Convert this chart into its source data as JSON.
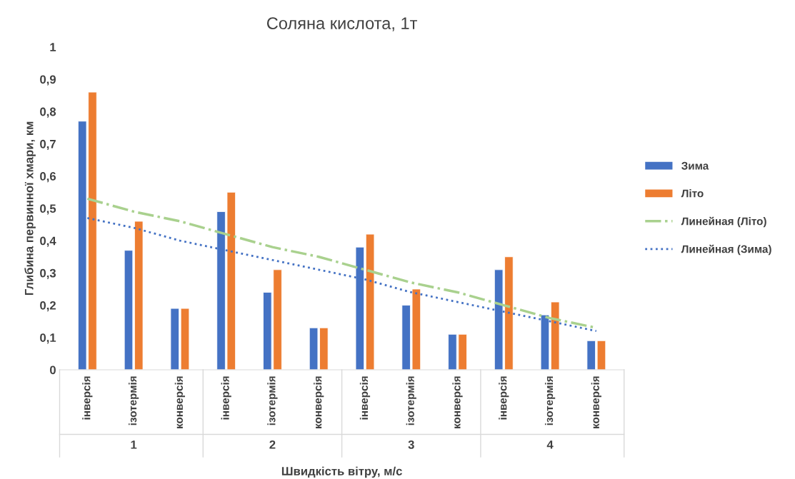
{
  "chart_data": {
    "type": "bar",
    "title": "Соляна кислота, 1т",
    "xlabel": "Швидкість вітру, м/с",
    "ylabel": "Глибина первинної хмари, км",
    "categories": [
      "інверсія",
      "ізотермія",
      "конверсія",
      "інверсія",
      "ізотермія",
      "конверсія",
      "інверсія",
      "ізотермія",
      "конверсія",
      "інверсія",
      "ізотермія",
      "конверсія"
    ],
    "annotations": [
      "1",
      "2",
      "3",
      "4"
    ],
    "series": [
      {
        "name": "Зима",
        "color": "#4472c4",
        "values": [
          0.77,
          0.37,
          0.19,
          0.49,
          0.24,
          0.13,
          0.38,
          0.2,
          0.11,
          0.31,
          0.17,
          0.09
        ]
      },
      {
        "name": "Літо",
        "color": "#ed7d31",
        "values": [
          0.86,
          0.46,
          0.19,
          0.55,
          0.31,
          0.13,
          0.42,
          0.25,
          0.11,
          0.35,
          0.21,
          0.09
        ]
      },
      {
        "name": "Линейная (Літо)",
        "type": "line",
        "line_style": "dashdot",
        "color": "#a9d18e",
        "values": [
          0.53,
          0.49,
          0.46,
          0.42,
          0.38,
          0.35,
          0.31,
          0.27,
          0.24,
          0.2,
          0.16,
          0.13
        ]
      },
      {
        "name": "Линейная (Зима)",
        "type": "line",
        "line_style": "dotted",
        "color": "#4472c4",
        "values": [
          0.47,
          0.44,
          0.4,
          0.37,
          0.34,
          0.31,
          0.28,
          0.24,
          0.21,
          0.18,
          0.15,
          0.12
        ]
      }
    ],
    "ylim": [
      0,
      1
    ],
    "yticks": [
      {
        "value": 0,
        "label": "0"
      },
      {
        "value": 0.1,
        "label": "0,1"
      },
      {
        "value": 0.2,
        "label": "0,2"
      },
      {
        "value": 0.3,
        "label": "0,3"
      },
      {
        "value": 0.4,
        "label": "0,4"
      },
      {
        "value": 0.5,
        "label": "0,5"
      },
      {
        "value": 0.6,
        "label": "0,6"
      },
      {
        "value": 0.7,
        "label": "0,7"
      },
      {
        "value": 0.8,
        "label": "0,8"
      },
      {
        "value": 0.9,
        "label": "0,9"
      },
      {
        "value": 1,
        "label": "1"
      }
    ],
    "grid": false,
    "legend": "right"
  }
}
